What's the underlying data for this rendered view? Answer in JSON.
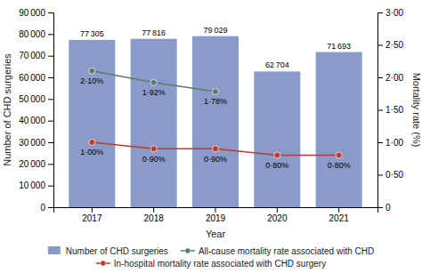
{
  "chart_data": {
    "type": "bar",
    "x_label": "Year",
    "y_label": "Number of CHD surgeries",
    "y2_label": "Mortality rate (%)",
    "categories": [
      "2017",
      "2018",
      "2019",
      "2020",
      "2021"
    ],
    "series": [
      {
        "name": "Number of CHD surgeries",
        "type": "bar",
        "color": "#8a9bc9",
        "values": [
          77305,
          77816,
          79029,
          62704,
          71693
        ],
        "value_labels": [
          "77 305",
          "77 816",
          "79 029",
          "62 704",
          "71 693"
        ]
      },
      {
        "name": "All-cause mortality rate associated with CHD",
        "type": "line",
        "axis": "y2",
        "color": "#5a7a6a",
        "marker": "circle",
        "values": [
          2.1,
          1.92,
          1.78,
          null,
          null
        ],
        "value_labels": [
          "2·10%",
          "1·92%",
          "1·78%",
          null,
          null
        ]
      },
      {
        "name": "In-hospital mortality rate associated with CHD surgery",
        "type": "line",
        "axis": "y2",
        "color": "#c0392b",
        "marker": "circle",
        "values": [
          1.0,
          0.9,
          0.9,
          0.8,
          0.8
        ],
        "value_labels": [
          "1·00%",
          "0·90%",
          "0·90%",
          "0·80%",
          "0·80%"
        ]
      }
    ],
    "ylim": [
      0,
      90000
    ],
    "yticks": [
      0,
      {
        "value": 10000,
        "label": "10 000"
      },
      {
        "value": 20000,
        "label": "20 000"
      },
      {
        "value": 30000,
        "label": "30 000"
      },
      {
        "value": 40000,
        "label": "40 000"
      },
      {
        "value": 50000,
        "label": "50 000"
      },
      {
        "value": 60000,
        "label": "60 000"
      },
      {
        "value": 70000,
        "label": "70 000"
      },
      {
        "value": 80000,
        "label": "80 000"
      },
      {
        "value": 90000,
        "label": "90 000"
      }
    ],
    "y2lim": [
      0,
      3.0
    ],
    "y2ticks": [
      0,
      {
        "value": 0.5,
        "label": "0·50"
      },
      {
        "value": 1.0,
        "label": "1·00"
      },
      {
        "value": 1.5,
        "label": "1·50"
      },
      {
        "value": 2.0,
        "label": "2·00"
      },
      {
        "value": 2.5,
        "label": "2·50"
      },
      {
        "value": 3.0,
        "label": "3·00"
      }
    ],
    "data_labels": true,
    "grid": false,
    "legend": "bottom"
  }
}
